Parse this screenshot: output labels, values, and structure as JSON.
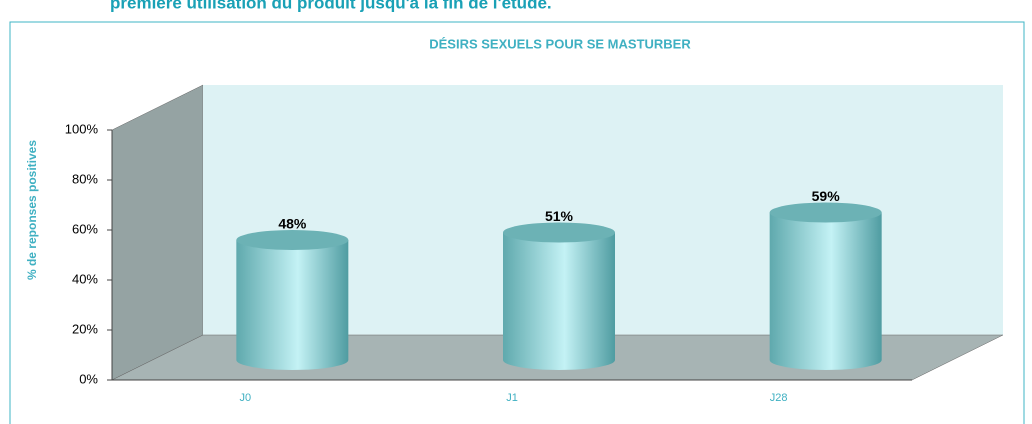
{
  "header": {
    "text": "première utilisation du produit jusqu'à la fin de l'étude."
  },
  "chart_data": {
    "type": "bar3d",
    "title": "DÉSIRS SEXUELS POUR  SE MASTURBER",
    "ylabel": "% de reponses positives",
    "categories": [
      "J0",
      "J1",
      "J28"
    ],
    "values": [
      48,
      51,
      59
    ],
    "value_labels": [
      "48%",
      "51%",
      "59%"
    ],
    "color": "#8fd4d8",
    "ylim": [
      0,
      100
    ],
    "yticks": [
      {
        "value": 0,
        "label": "0%"
      },
      {
        "value": 20,
        "label": "20%"
      },
      {
        "value": 40,
        "label": "40%"
      },
      {
        "value": 60,
        "label": "60%"
      },
      {
        "value": 80,
        "label": "80%"
      },
      {
        "value": 100,
        "label": "100%"
      }
    ],
    "grid": false
  }
}
